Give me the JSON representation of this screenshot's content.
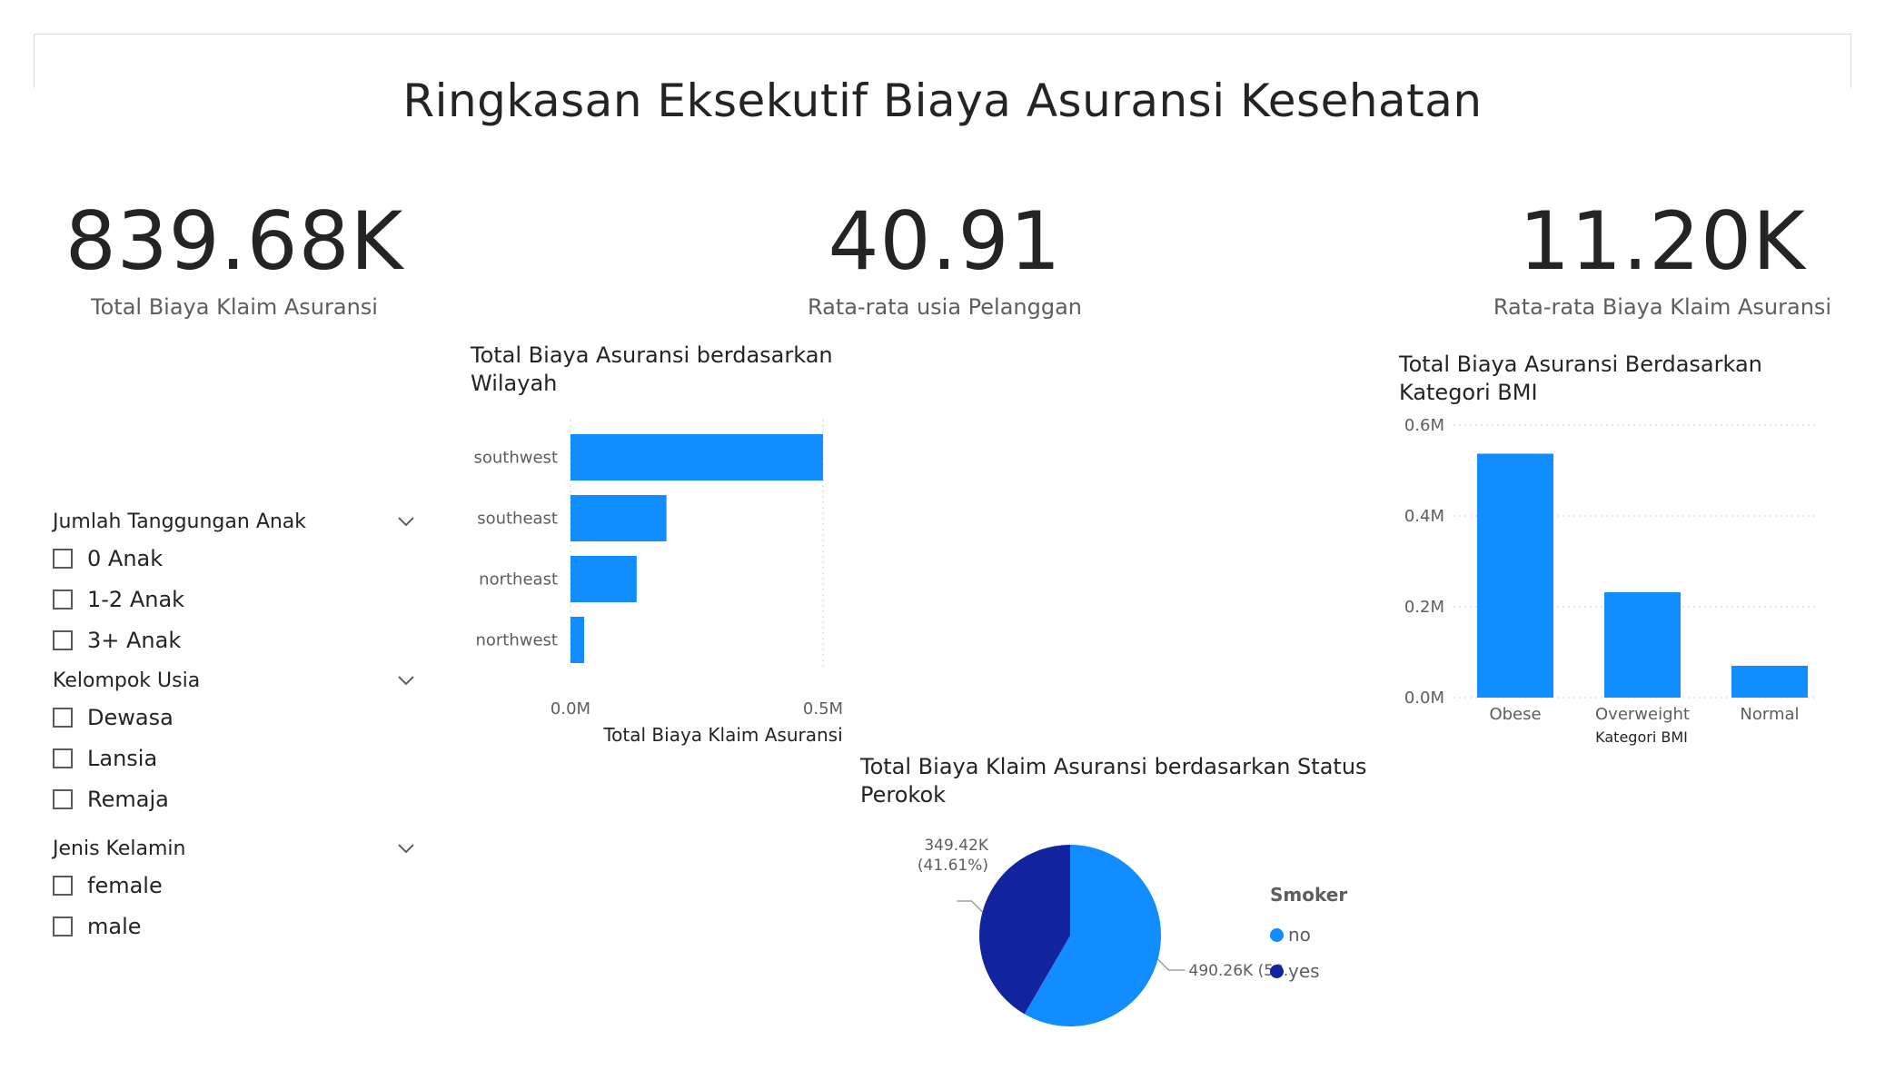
{
  "page": {
    "title": "Ringkasan Eksekutif Biaya Asuransi Kesehatan"
  },
  "kpis": [
    {
      "value": "839.68K",
      "label": "Total Biaya Klaim Asuransi"
    },
    {
      "value": "40.91",
      "label": "Rata-rata usia Pelanggan"
    },
    {
      "value": "11.20K",
      "label": "Rata-rata Biaya Klaim Asuransi"
    }
  ],
  "slicers": [
    {
      "title": "Jumlah Tanggungan Anak",
      "options": [
        "0 Anak",
        "1-2 Anak",
        "3+ Anak"
      ]
    },
    {
      "title": "Kelompok Usia",
      "options": [
        "Dewasa",
        "Lansia",
        "Remaja"
      ]
    },
    {
      "title": "Jenis Kelamin",
      "options": [
        "female",
        "male"
      ]
    }
  ],
  "colors": {
    "primary": "#118dff",
    "dark": "#12239e",
    "grid": "#d0d0d0"
  },
  "chart_data": [
    {
      "type": "bar",
      "orientation": "horizontal",
      "title": "Total Biaya Asuransi berdasarkan Wilayah",
      "categories": [
        "southwest",
        "southeast",
        "northeast",
        "northwest"
      ],
      "values": [
        500000,
        190000,
        131000,
        27000
      ],
      "xlabel": "Total Biaya Klaim Asuransi",
      "ylabel": "",
      "xlim": [
        0,
        500000
      ],
      "ticks": [
        {
          "value": 0,
          "label": "0.0M"
        },
        {
          "value": 500000,
          "label": "0.5M"
        }
      ],
      "grid": true
    },
    {
      "type": "bar",
      "orientation": "vertical",
      "title": "Total Biaya Asuransi Berdasarkan Kategori BMI",
      "categories": [
        "Obese",
        "Overweight",
        "Normal"
      ],
      "values": [
        537000,
        232000,
        70000
      ],
      "xlabel": "Kategori BMI",
      "ylabel": "",
      "ylim": [
        0,
        600000
      ],
      "ticks": [
        {
          "value": 0,
          "label": "0.0M"
        },
        {
          "value": 200000,
          "label": "0.2M"
        },
        {
          "value": 400000,
          "label": "0.4M"
        },
        {
          "value": 600000,
          "label": "0.6M"
        }
      ],
      "grid": true
    },
    {
      "type": "pie",
      "title": "Total Biaya Klaim Asuransi berdasarkan Status Perokok",
      "legend_title": "Smoker",
      "legend_position": "right",
      "slices": [
        {
          "name": "no",
          "value": 490260,
          "label": "490.26K (58.39%)",
          "color": "#118dff"
        },
        {
          "name": "yes",
          "value": 349420,
          "label_line1": "349.42K",
          "label_line2": "(41.61%)",
          "color": "#12239e"
        }
      ]
    }
  ]
}
